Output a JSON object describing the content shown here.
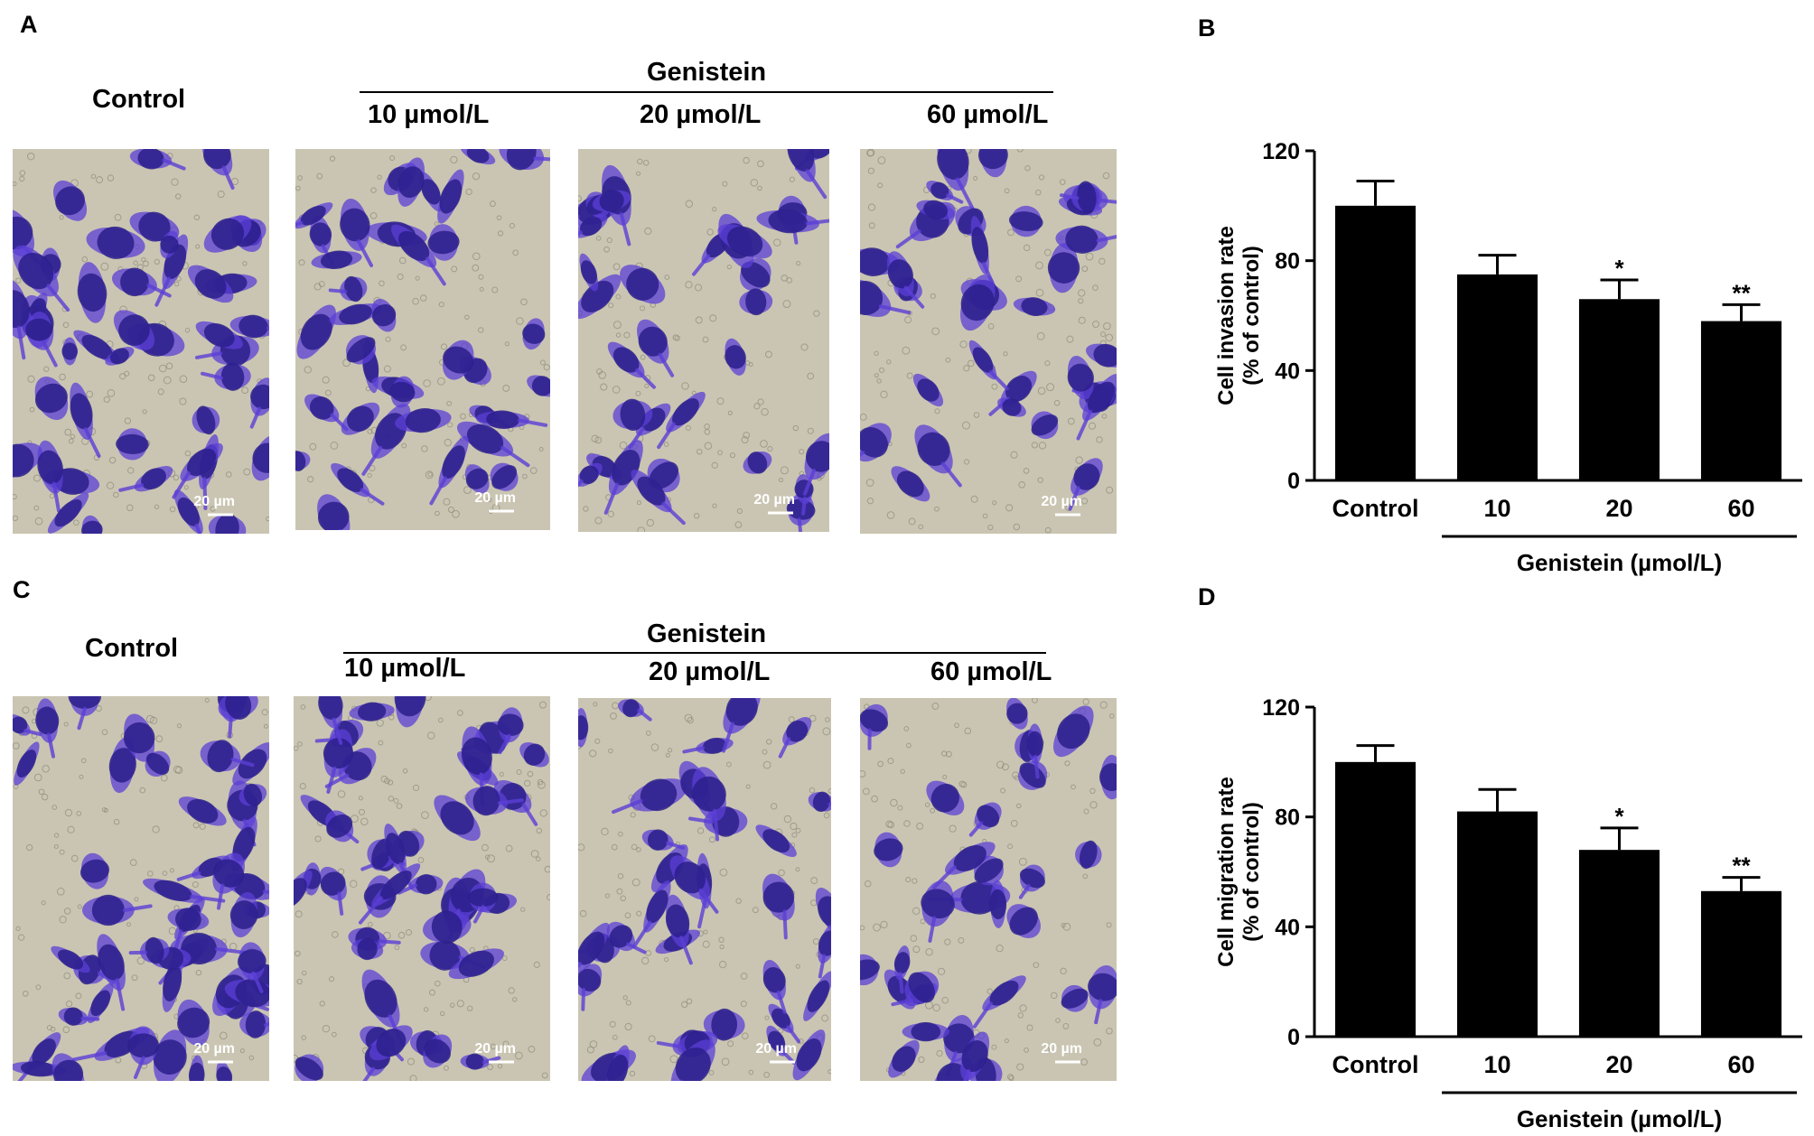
{
  "colors": {
    "bar": "#000000",
    "stain": "#5b3fd6",
    "stain_dark": "#2a1f8a",
    "membrane": "#cac5b2"
  },
  "panel_a": {
    "letter": "A",
    "control_label": "Control",
    "group_label": "Genistein",
    "concentrations": [
      "10 µmol/L",
      "20 µmol/L",
      "60 µmol/L"
    ],
    "scale_bars": [
      "20 µm",
      "20 µm",
      "20 µm",
      "20 µm"
    ]
  },
  "panel_c": {
    "letter": "C",
    "control_label": "Control",
    "group_label": "Genistein",
    "concentrations": [
      "10 µmol/L",
      "20 µmol/L",
      "60 µmol/L"
    ],
    "scale_bars": [
      "20 µm",
      "20 µm",
      "20 µm",
      "20 µm"
    ]
  },
  "chart_data": [
    {
      "panel": "B",
      "type": "bar",
      "categories": [
        "Control",
        "10",
        "20",
        "60"
      ],
      "values": [
        100,
        75,
        66,
        58
      ],
      "errors": [
        9,
        7,
        7,
        6
      ],
      "significance": [
        "",
        "",
        "*",
        "**"
      ],
      "ylabel_line1": "Cell invasion rate",
      "ylabel_line2": "(% of control)",
      "group_label": "Genistein (µmol/L)",
      "ylim": [
        0,
        120
      ],
      "yticks": [
        0,
        40,
        80,
        120
      ]
    },
    {
      "panel": "D",
      "type": "bar",
      "categories": [
        "Control",
        "10",
        "20",
        "60"
      ],
      "values": [
        100,
        82,
        68,
        53
      ],
      "errors": [
        6,
        8,
        8,
        5
      ],
      "significance": [
        "",
        "",
        "*",
        "**"
      ],
      "ylabel_line1": "Cell migration rate",
      "ylabel_line2": "(% of control)",
      "group_label": "Genistein (µmol/L)",
      "ylim": [
        0,
        120
      ],
      "yticks": [
        0,
        40,
        80,
        120
      ]
    }
  ]
}
